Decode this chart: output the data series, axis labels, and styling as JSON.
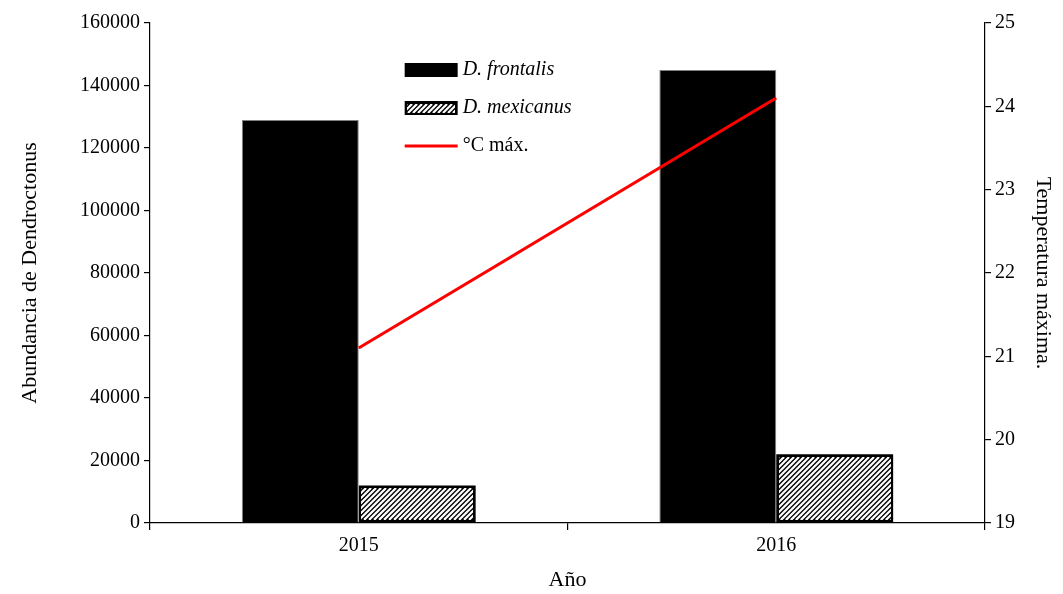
{
  "chart_data": {
    "type": "bar",
    "xlabel": "Año",
    "ylabel": "Abundancia de Dendroctonus",
    "y2label": "Temperatura máxima.",
    "categories": [
      "2015",
      "2016"
    ],
    "series": [
      {
        "name": "D. frontalis",
        "color": "#000000",
        "values": [
          129000,
          145000
        ]
      },
      {
        "name": "D. mexicanus",
        "color": "#000000",
        "values": [
          12000,
          22000
        ]
      },
      {
        "name": "°C máx.",
        "type": "line",
        "axis": "y2",
        "color": "#ff0000",
        "values": [
          21.1,
          24.1
        ]
      }
    ],
    "ylim": [
      0,
      160000
    ],
    "yticks": [
      0,
      20000,
      40000,
      60000,
      80000,
      100000,
      120000,
      140000,
      160000
    ],
    "y2lim": [
      19,
      25
    ],
    "y2ticks": [
      19,
      20,
      21,
      22,
      23,
      24,
      25
    ],
    "legend": "top"
  }
}
